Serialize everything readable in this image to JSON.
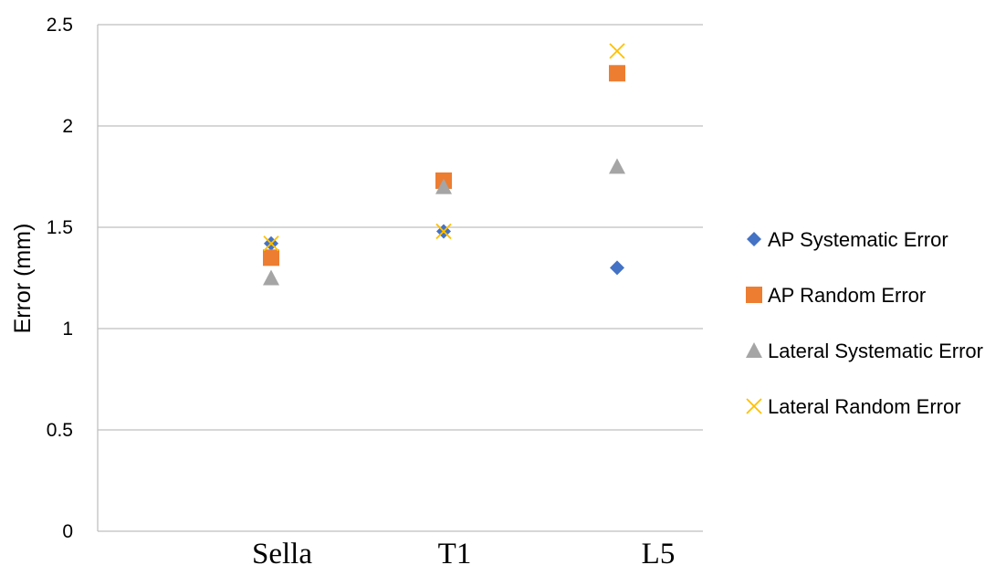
{
  "chart_data": {
    "type": "scatter",
    "categories": [
      "Sella",
      "T1",
      "L5"
    ],
    "ylabel": "Error (mm)",
    "ylim": [
      0,
      2.5
    ],
    "yticks": [
      "0",
      "0.5",
      "1",
      "1.5",
      "2",
      "2.5"
    ],
    "grid": true,
    "legend_position": "right",
    "series": [
      {
        "name": "AP Systematic Error",
        "marker": "diamond",
        "color": "#4472C4",
        "values": [
          1.42,
          1.48,
          1.3
        ]
      },
      {
        "name": "AP Random Error",
        "marker": "square",
        "color": "#ED7D31",
        "values": [
          1.35,
          1.73,
          2.26
        ]
      },
      {
        "name": "Lateral Systematic Error",
        "marker": "triangle",
        "color": "#A5A5A5",
        "values": [
          1.25,
          1.7,
          1.8
        ]
      },
      {
        "name": "Lateral Random Error",
        "marker": "x",
        "color": "#FFC000",
        "values": [
          1.42,
          1.48,
          2.37
        ]
      }
    ]
  }
}
